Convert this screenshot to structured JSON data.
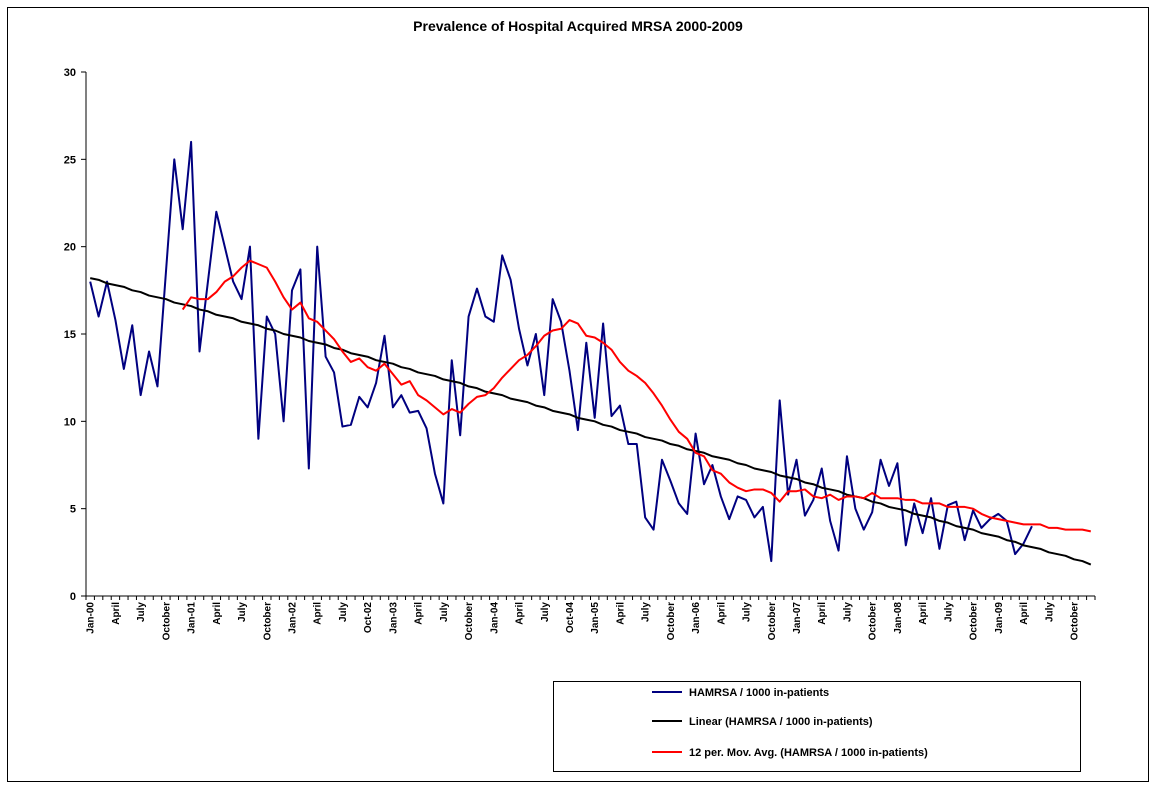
{
  "chart_data": {
    "type": "line",
    "title": "Prevalence of  Hospital Acquired MRSA 2000-2009",
    "categories": [
      "Jan-00",
      null,
      null,
      "April",
      null,
      null,
      "July",
      null,
      null,
      "October",
      null,
      null,
      "Jan-01",
      null,
      null,
      "April",
      null,
      null,
      "July",
      null,
      null,
      "October",
      null,
      null,
      "Jan-02",
      null,
      null,
      "April",
      null,
      null,
      "July",
      null,
      null,
      "Oct-02",
      null,
      null,
      "Jan-03",
      null,
      null,
      "April",
      null,
      null,
      "July",
      null,
      null,
      "October",
      null,
      null,
      "Jan-04",
      null,
      null,
      "April",
      null,
      null,
      "July",
      null,
      null,
      "Oct-04",
      null,
      null,
      "Jan-05",
      null,
      null,
      "April",
      null,
      null,
      "July",
      null,
      null,
      "October",
      null,
      null,
      "Jan-06",
      null,
      null,
      "April",
      null,
      null,
      "July",
      null,
      null,
      "October",
      null,
      null,
      "Jan-07",
      null,
      null,
      "April",
      null,
      null,
      "July",
      null,
      null,
      "October",
      null,
      null,
      "Jan-08",
      null,
      null,
      "April",
      null,
      null,
      "July",
      null,
      null,
      "October",
      null,
      null,
      "Jan-09",
      null,
      null,
      "April",
      null,
      null,
      "July",
      null,
      null,
      "October",
      null,
      null
    ],
    "series": [
      {
        "name": "HAMRSA / 1000 in-patients",
        "color": "#000080",
        "values": [
          18,
          16,
          18,
          15.8,
          13,
          15.5,
          11.5,
          14,
          12,
          18.5,
          25,
          21,
          26,
          14,
          18,
          22,
          20,
          18,
          17,
          20,
          9,
          16,
          15,
          10,
          17.5,
          18.7,
          7.3,
          20,
          13.7,
          12.8,
          9.7,
          9.8,
          11.4,
          10.8,
          12.2,
          14.9,
          10.8,
          11.5,
          10.5,
          10.6,
          9.6,
          7,
          5.3,
          13.5,
          9.2,
          16,
          17.6,
          16,
          15.7,
          19.5,
          18.1,
          15.3,
          13.2,
          15,
          11.5,
          17,
          15.7,
          12.9,
          9.5,
          14.5,
          10.2,
          15.6,
          10.3,
          10.9,
          8.7,
          8.7,
          4.5,
          3.8,
          7.8,
          6.6,
          5.3,
          4.7,
          9.3,
          6.4,
          7.5,
          5.7,
          4.4,
          5.7,
          5.5,
          4.5,
          5.1,
          2,
          11.2,
          5.8,
          7.8,
          4.6,
          5.5,
          7.3,
          4.3,
          2.6,
          8,
          5,
          3.8,
          4.8,
          7.8,
          6.3,
          7.6,
          2.9,
          5.3,
          3.6,
          5.6,
          2.7,
          5.2,
          5.4,
          3.2,
          4.9,
          3.9,
          4.4,
          4.7,
          4.3,
          2.4,
          3,
          4,
          null,
          null,
          null,
          null,
          null,
          null,
          null
        ]
      },
      {
        "name": "Linear (HAMRSA / 1000 in-patients)",
        "color": "#000000",
        "values": [
          18.2,
          18.1,
          17.9,
          17.8,
          17.7,
          17.5,
          17.4,
          17.2,
          17.1,
          17.0,
          16.8,
          16.7,
          16.6,
          16.4,
          16.3,
          16.1,
          16.0,
          15.9,
          15.7,
          15.6,
          15.5,
          15.3,
          15.2,
          15.0,
          14.9,
          14.8,
          14.6,
          14.5,
          14.4,
          14.2,
          14.1,
          13.9,
          13.8,
          13.7,
          13.5,
          13.4,
          13.3,
          13.1,
          13.0,
          12.8,
          12.7,
          12.6,
          12.4,
          12.3,
          12.2,
          12.0,
          11.9,
          11.7,
          11.6,
          11.5,
          11.3,
          11.2,
          11.1,
          10.9,
          10.8,
          10.6,
          10.5,
          10.4,
          10.2,
          10.1,
          10.0,
          9.8,
          9.7,
          9.5,
          9.4,
          9.3,
          9.1,
          9.0,
          8.9,
          8.7,
          8.6,
          8.4,
          8.3,
          8.2,
          8.0,
          7.9,
          7.8,
          7.6,
          7.5,
          7.3,
          7.2,
          7.1,
          6.9,
          6.8,
          6.7,
          6.5,
          6.4,
          6.2,
          6.1,
          6.0,
          5.8,
          5.7,
          5.6,
          5.4,
          5.3,
          5.1,
          5.0,
          4.9,
          4.7,
          4.6,
          4.5,
          4.3,
          4.2,
          4.0,
          3.9,
          3.8,
          3.6,
          3.5,
          3.4,
          3.2,
          3.1,
          2.9,
          2.8,
          2.7,
          2.5,
          2.4,
          2.3,
          2.1,
          2.0,
          1.8
        ]
      },
      {
        "name": "12 per. Mov. Avg. (HAMRSA / 1000 in-patients)",
        "color": "#ff0000",
        "values": [
          null,
          null,
          null,
          null,
          null,
          null,
          null,
          null,
          null,
          null,
          null,
          16.4,
          17.1,
          17.0,
          17.0,
          17.4,
          18.0,
          18.3,
          18.8,
          19.2,
          19.0,
          18.8,
          18.0,
          17.1,
          16.4,
          16.8,
          15.9,
          15.7,
          15.2,
          14.7,
          14.0,
          13.4,
          13.6,
          13.1,
          12.9,
          13.3,
          12.7,
          12.1,
          12.3,
          11.5,
          11.2,
          10.8,
          10.4,
          10.7,
          10.5,
          11.0,
          11.4,
          11.5,
          11.9,
          12.5,
          13.0,
          13.5,
          13.8,
          14.3,
          14.9,
          15.2,
          15.3,
          15.8,
          15.6,
          14.9,
          14.8,
          14.5,
          14.1,
          13.4,
          12.9,
          12.6,
          12.2,
          11.6,
          10.9,
          10.1,
          9.4,
          9.0,
          8.2,
          8.0,
          7.2,
          7.0,
          6.5,
          6.2,
          6.0,
          6.1,
          6.1,
          5.9,
          5.4,
          6.0,
          6.0,
          6.1,
          5.7,
          5.6,
          5.8,
          5.5,
          5.7,
          5.7,
          5.6,
          5.9,
          5.6,
          5.6,
          5.6,
          5.5,
          5.5,
          5.3,
          5.3,
          5.3,
          5.1,
          5.1,
          5.1,
          5.0,
          4.7,
          4.5,
          4.4,
          4.3,
          4.2,
          4.1,
          4.1,
          4.1,
          3.9,
          3.9,
          3.8,
          3.8,
          3.8,
          3.7
        ]
      }
    ],
    "ylim": [
      0,
      30
    ],
    "yticks": [
      0,
      5,
      10,
      15,
      20,
      25,
      30
    ],
    "grid": false,
    "legend": "bottom"
  }
}
